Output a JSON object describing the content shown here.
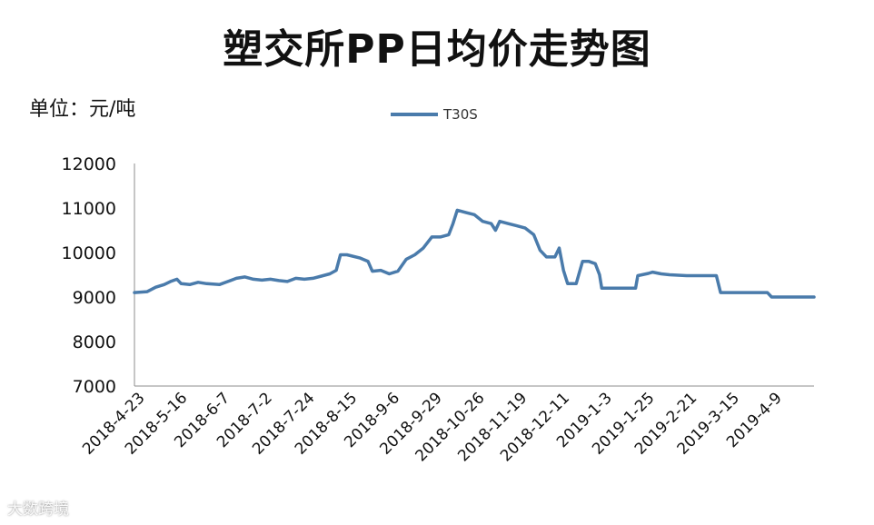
{
  "chart_data": {
    "type": "line",
    "title": "塑交所PP日均价走势图",
    "unit_label": "单位：元/吨",
    "ylim": [
      7000,
      12000
    ],
    "yticks": [
      "12000",
      "11000",
      "10000",
      "9000",
      "8000",
      "7000"
    ],
    "grid": false,
    "legend_position": "top-center",
    "xtick_labels": [
      "2018-4-23",
      "2018-5-16",
      "2018-6-7",
      "2018-7-2",
      "2018-7-24",
      "2018-8-15",
      "2018-9-6",
      "2018-9-29",
      "2018-10-26",
      "2018-11-19",
      "2018-12-11",
      "2019-1-3",
      "2019-1-25",
      "2019-2-21",
      "2019-3-15",
      "2019-4-9"
    ],
    "series": [
      {
        "name": "T30S",
        "color": "#4a7bab",
        "points": [
          [
            0,
            9100
          ],
          [
            0.3,
            9120
          ],
          [
            0.5,
            9220
          ],
          [
            0.7,
            9280
          ],
          [
            0.85,
            9350
          ],
          [
            1.0,
            9400
          ],
          [
            1.1,
            9300
          ],
          [
            1.3,
            9280
          ],
          [
            1.5,
            9330
          ],
          [
            1.7,
            9300
          ],
          [
            2.0,
            9280
          ],
          [
            2.2,
            9350
          ],
          [
            2.4,
            9420
          ],
          [
            2.6,
            9450
          ],
          [
            2.8,
            9400
          ],
          [
            3.0,
            9380
          ],
          [
            3.2,
            9400
          ],
          [
            3.4,
            9370
          ],
          [
            3.6,
            9350
          ],
          [
            3.8,
            9420
          ],
          [
            4.0,
            9400
          ],
          [
            4.2,
            9420
          ],
          [
            4.4,
            9470
          ],
          [
            4.6,
            9520
          ],
          [
            4.75,
            9600
          ],
          [
            4.85,
            9950
          ],
          [
            5.0,
            9950
          ],
          [
            5.3,
            9880
          ],
          [
            5.5,
            9800
          ],
          [
            5.6,
            9580
          ],
          [
            5.8,
            9600
          ],
          [
            6.0,
            9520
          ],
          [
            6.2,
            9580
          ],
          [
            6.4,
            9850
          ],
          [
            6.6,
            9950
          ],
          [
            6.8,
            10100
          ],
          [
            7.0,
            10350
          ],
          [
            7.2,
            10350
          ],
          [
            7.4,
            10400
          ],
          [
            7.5,
            10650
          ],
          [
            7.6,
            10950
          ],
          [
            7.8,
            10900
          ],
          [
            8.0,
            10850
          ],
          [
            8.2,
            10700
          ],
          [
            8.4,
            10650
          ],
          [
            8.5,
            10500
          ],
          [
            8.6,
            10700
          ],
          [
            8.8,
            10650
          ],
          [
            9.0,
            10600
          ],
          [
            9.2,
            10550
          ],
          [
            9.4,
            10400
          ],
          [
            9.55,
            10050
          ],
          [
            9.7,
            9900
          ],
          [
            9.9,
            9900
          ],
          [
            10.0,
            10100
          ],
          [
            10.1,
            9600
          ],
          [
            10.2,
            9300
          ],
          [
            10.4,
            9300
          ],
          [
            10.55,
            9800
          ],
          [
            10.7,
            9800
          ],
          [
            10.85,
            9750
          ],
          [
            10.95,
            9500
          ],
          [
            11.0,
            9200
          ],
          [
            11.3,
            9200
          ],
          [
            11.6,
            9200
          ],
          [
            11.8,
            9200
          ],
          [
            11.85,
            9480
          ],
          [
            12.1,
            9530
          ],
          [
            12.2,
            9560
          ],
          [
            12.4,
            9520
          ],
          [
            12.6,
            9500
          ],
          [
            13.0,
            9480
          ],
          [
            13.4,
            9480
          ],
          [
            13.7,
            9480
          ],
          [
            13.8,
            9100
          ],
          [
            14.2,
            9100
          ],
          [
            14.6,
            9100
          ],
          [
            14.9,
            9100
          ],
          [
            15.0,
            9000
          ],
          [
            15.5,
            9000
          ],
          [
            16.0,
            9000
          ]
        ]
      }
    ]
  },
  "legend": {
    "label": "T30S"
  },
  "watermark": "大数跨境"
}
